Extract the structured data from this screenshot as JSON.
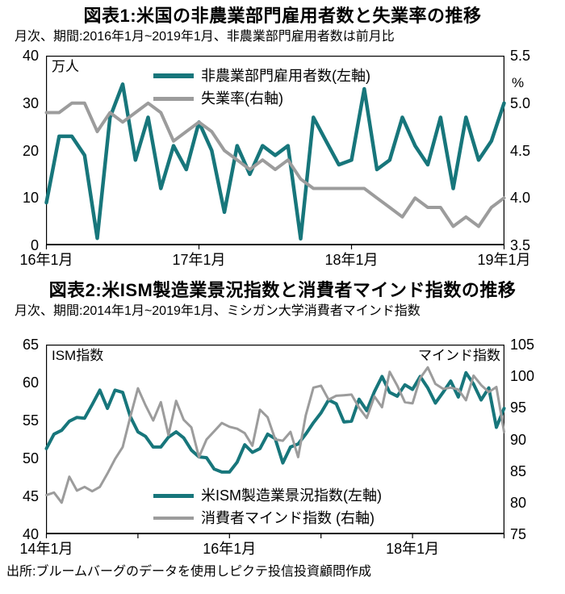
{
  "source_note": "出所:ブルームバーグのデータを使用しピクテ投信投資顧問作成",
  "chart_data": [
    {
      "type": "line",
      "title": "図表1:米国の非農業部門雇用者数と失業率の推移",
      "subtitle": "月次、期間:2016年1月~2019年1月、非農業部門雇用者数は前月比",
      "grid": false,
      "legend_position": "top-inside",
      "x": [
        "2016-01",
        "2016-02",
        "2016-03",
        "2016-04",
        "2016-05",
        "2016-06",
        "2016-07",
        "2016-08",
        "2016-09",
        "2016-10",
        "2016-11",
        "2016-12",
        "2017-01",
        "2017-02",
        "2017-03",
        "2017-04",
        "2017-05",
        "2017-06",
        "2017-07",
        "2017-08",
        "2017-09",
        "2017-10",
        "2017-11",
        "2017-12",
        "2018-01",
        "2018-02",
        "2018-03",
        "2018-04",
        "2018-05",
        "2018-06",
        "2018-07",
        "2018-08",
        "2018-09",
        "2018-10",
        "2018-11",
        "2018-12",
        "2019-01"
      ],
      "x_ticks": [
        {
          "index": 0,
          "label": "16年1月"
        },
        {
          "index": 12,
          "label": "17年1月"
        },
        {
          "index": 24,
          "label": "18年1月"
        },
        {
          "index": 36,
          "label": "19年1月"
        }
      ],
      "axes": {
        "left": {
          "label": "万人",
          "min": 0,
          "max": 40,
          "ticks": [
            "40",
            "30",
            "20",
            "10",
            "0"
          ]
        },
        "right": {
          "label": "%",
          "min": 3.5,
          "max": 5.5,
          "ticks": [
            "5.5",
            "5.0",
            "4.5",
            "4.0",
            "3.5"
          ]
        }
      },
      "series": [
        {
          "key": "nonfarm_payrolls",
          "name": "非農業部門雇用者数(左軸)",
          "axis": "left",
          "color": "#17767b",
          "stroke_width": 4.5,
          "values": [
            9,
            23,
            23,
            19,
            1.5,
            27,
            34,
            18,
            27,
            12,
            21,
            16,
            26,
            20,
            7,
            21,
            15,
            21,
            19,
            21,
            1.4,
            27,
            22,
            17,
            18,
            33,
            16,
            18,
            27,
            21,
            17,
            27,
            12,
            27,
            18,
            22,
            30
          ]
        },
        {
          "key": "unemployment_rate",
          "name": "失業率(右軸)",
          "axis": "right",
          "color": "#9c9c9c",
          "stroke_width": 4,
          "values": [
            4.9,
            4.9,
            5.0,
            5.0,
            4.7,
            4.9,
            4.8,
            4.9,
            5.0,
            4.9,
            4.6,
            4.7,
            4.8,
            4.7,
            4.5,
            4.4,
            4.3,
            4.4,
            4.3,
            4.4,
            4.2,
            4.1,
            4.1,
            4.1,
            4.1,
            4.1,
            4.0,
            3.9,
            3.8,
            4.0,
            3.9,
            3.9,
            3.7,
            3.8,
            3.7,
            3.9,
            4.0
          ]
        }
      ]
    },
    {
      "type": "line",
      "title": "図表2:米ISM製造業景況指数と消費者マインド指数の推移",
      "subtitle": "月次、期間:2014年1月~2019年1月、ミシガン大学消費者マインド指数",
      "grid": false,
      "legend_position": "bottom-inside",
      "x": [
        "2014-01",
        "2014-02",
        "2014-03",
        "2014-04",
        "2014-05",
        "2014-06",
        "2014-07",
        "2014-08",
        "2014-09",
        "2014-10",
        "2014-11",
        "2014-12",
        "2015-01",
        "2015-02",
        "2015-03",
        "2015-04",
        "2015-05",
        "2015-06",
        "2015-07",
        "2015-08",
        "2015-09",
        "2015-10",
        "2015-11",
        "2015-12",
        "2016-01",
        "2016-02",
        "2016-03",
        "2016-04",
        "2016-05",
        "2016-06",
        "2016-07",
        "2016-08",
        "2016-09",
        "2016-10",
        "2016-11",
        "2016-12",
        "2017-01",
        "2017-02",
        "2017-03",
        "2017-04",
        "2017-05",
        "2017-06",
        "2017-07",
        "2017-08",
        "2017-09",
        "2017-10",
        "2017-11",
        "2017-12",
        "2018-01",
        "2018-02",
        "2018-03",
        "2018-04",
        "2018-05",
        "2018-06",
        "2018-07",
        "2018-08",
        "2018-09",
        "2018-10",
        "2018-11",
        "2018-12",
        "2019-01"
      ],
      "x_ticks": [
        {
          "index": 0,
          "label": "14年1月"
        },
        {
          "index": 12,
          "label": ""
        },
        {
          "index": 24,
          "label": "16年1月"
        },
        {
          "index": 36,
          "label": ""
        },
        {
          "index": 48,
          "label": "18年1月"
        },
        {
          "index": 60,
          "label": ""
        }
      ],
      "axes": {
        "left": {
          "label": "ISM指数",
          "min": 40,
          "max": 65,
          "ticks": [
            "65",
            "60",
            "55",
            "50",
            "45",
            "40"
          ]
        },
        "right": {
          "label": "マインド指数",
          "min": 75,
          "max": 105,
          "ticks": [
            "105",
            "100",
            "95",
            "90",
            "85",
            "80",
            "75"
          ]
        }
      },
      "series": [
        {
          "key": "ism_manufacturing",
          "name": "米ISM製造業景況指数(左軸)",
          "axis": "left",
          "color": "#17767b",
          "stroke_width": 4,
          "values": [
            51.3,
            53.2,
            53.7,
            54.9,
            55.4,
            55.3,
            57.1,
            59.0,
            56.6,
            59.0,
            58.7,
            55.5,
            53.5,
            52.9,
            51.5,
            51.5,
            52.8,
            53.5,
            52.7,
            51.1,
            50.2,
            50.1,
            48.6,
            48.2,
            48.2,
            49.5,
            51.8,
            50.8,
            51.3,
            53.2,
            52.6,
            49.4,
            51.5,
            51.9,
            53.2,
            54.7,
            56.0,
            57.7,
            57.2,
            54.8,
            54.9,
            57.8,
            56.3,
            58.8,
            60.8,
            58.7,
            58.2,
            59.7,
            59.1,
            60.8,
            59.3,
            57.3,
            58.7,
            60.2,
            58.1,
            61.3,
            59.8,
            57.7,
            59.3,
            54.1,
            56.6
          ]
        },
        {
          "key": "consumer_sentiment",
          "name": "消費者マインド指数 (右軸)",
          "axis": "right",
          "color": "#9c9c9c",
          "stroke_width": 3,
          "values": [
            81.2,
            81.6,
            80.0,
            84.1,
            81.9,
            82.5,
            81.8,
            82.5,
            84.6,
            86.9,
            88.8,
            93.6,
            98.1,
            95.4,
            93.0,
            95.9,
            90.7,
            96.1,
            93.1,
            91.9,
            87.2,
            90.0,
            91.3,
            92.6,
            92.0,
            91.7,
            91.0,
            89.0,
            94.7,
            93.5,
            90.0,
            89.8,
            91.2,
            87.2,
            93.8,
            98.2,
            98.5,
            96.3,
            96.9,
            97.0,
            97.1,
            95.0,
            93.4,
            96.8,
            95.1,
            100.7,
            98.5,
            95.9,
            95.7,
            99.7,
            101.4,
            98.8,
            98.0,
            98.2,
            97.9,
            96.2,
            100.1,
            98.6,
            97.5,
            98.3,
            91.2
          ]
        }
      ]
    }
  ]
}
